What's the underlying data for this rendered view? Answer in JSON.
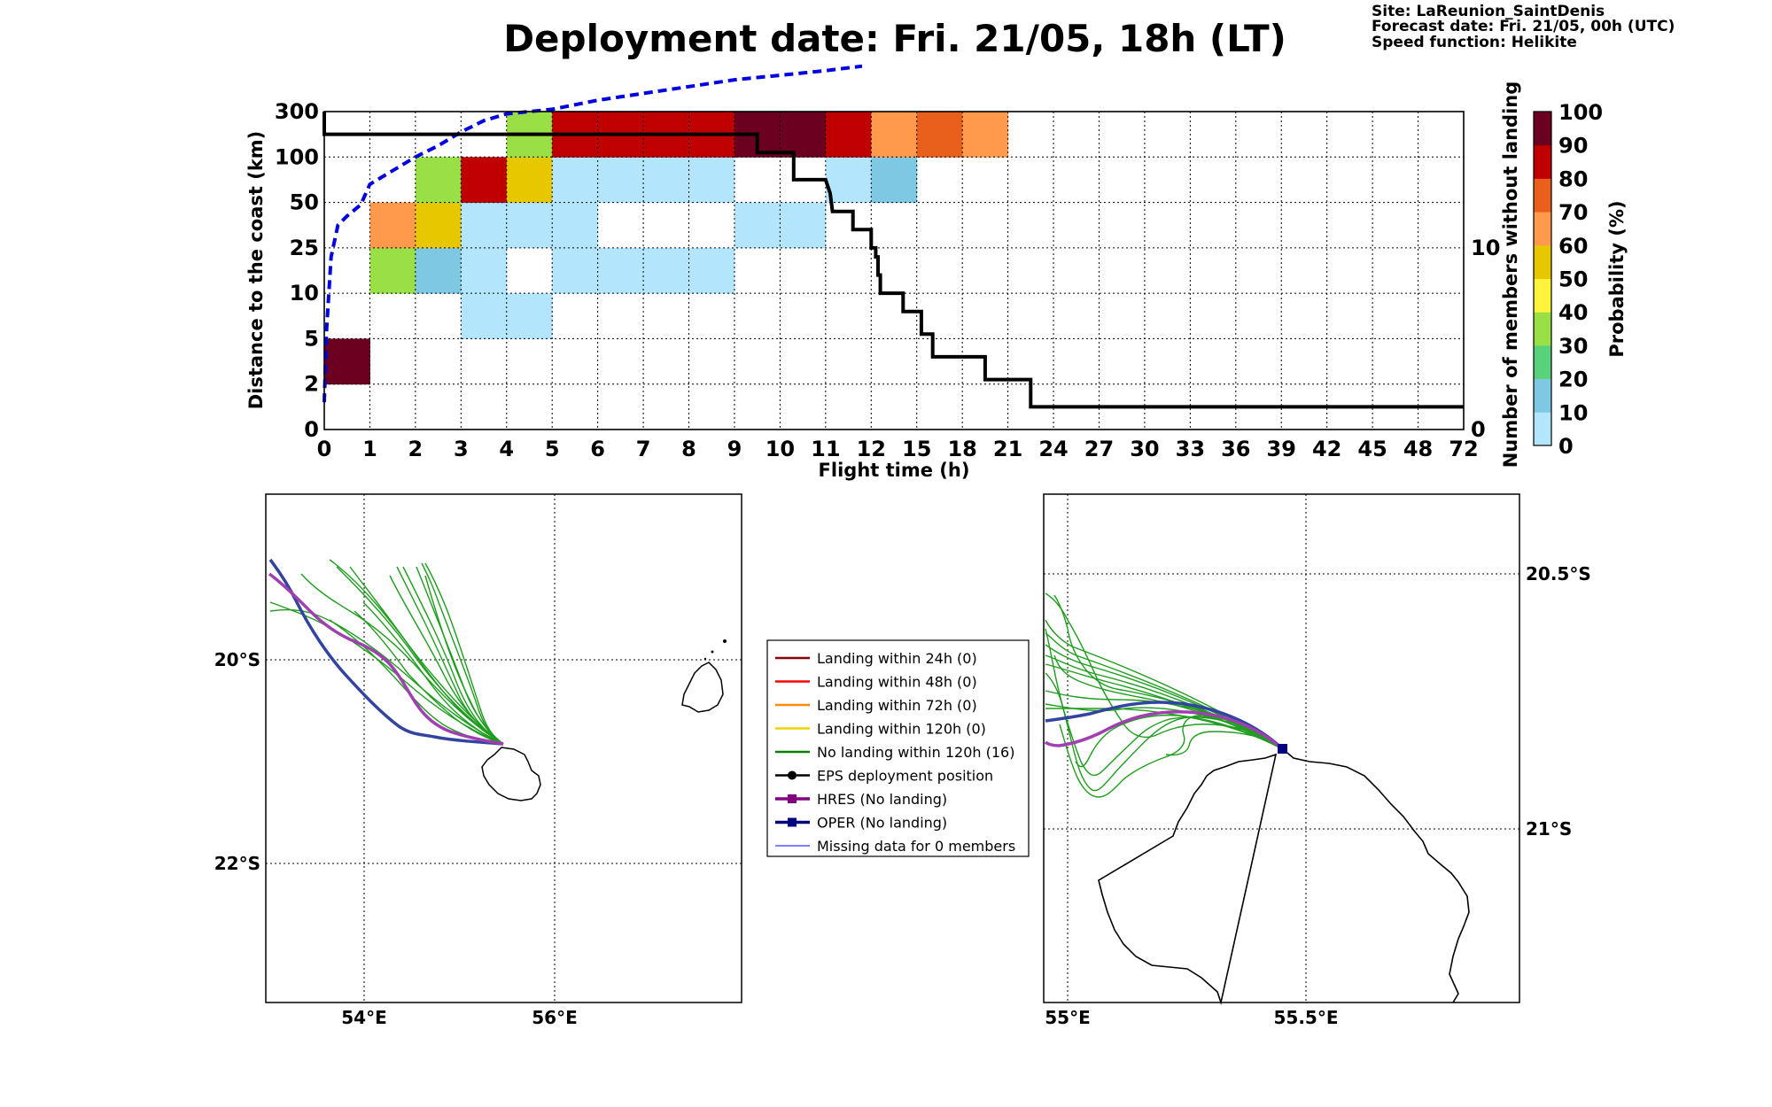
{
  "title": "Deployment date: Fri. 21/05, 18h (LT)",
  "info": {
    "site": "Site: LaReunion_SaintDenis",
    "forecast": "Forecast date: Fri. 21/05, 00h (UTC)",
    "speed": "Speed function: Helikite"
  },
  "chart_data": [
    {
      "type": "heatmap",
      "xlabel": "Flight time (h)",
      "ylabel": "Distance to the coast (km)",
      "y2label": "Number of members without landing",
      "x_ticks": [
        "0",
        "1",
        "2",
        "3",
        "4",
        "5",
        "6",
        "7",
        "8",
        "9",
        "10",
        "11",
        "12",
        "15",
        "18",
        "21",
        "24",
        "27",
        "30",
        "33",
        "36",
        "39",
        "42",
        "45",
        "48",
        "72"
      ],
      "y_ticks": [
        "0",
        "2",
        "5",
        "10",
        "25",
        "50",
        "100",
        "300"
      ],
      "y2_ticks": [
        "0",
        "10"
      ],
      "y2lim": [
        0,
        17.5
      ],
      "colorbar": {
        "label": "Probability (%)",
        "ticks": [
          "0",
          "10",
          "20",
          "30",
          "40",
          "50",
          "60",
          "70",
          "80",
          "90",
          "100"
        ],
        "colors": [
          "#b3e5fc",
          "#7ec8e3",
          "#5ad27a",
          "#98e045",
          "#fff33b",
          "#e6c700",
          "#ff9a4d",
          "#e8601c",
          "#c00000",
          "#6b0020"
        ]
      },
      "cells": [
        {
          "col": 0,
          "row": 1,
          "p": 100
        },
        {
          "col": 1,
          "row": 3,
          "p": 30
        },
        {
          "col": 1,
          "row": 4,
          "p": 60
        },
        {
          "col": 2,
          "row": 3,
          "p": 10
        },
        {
          "col": 2,
          "row": 4,
          "p": 50
        },
        {
          "col": 2,
          "row": 5,
          "p": 30
        },
        {
          "col": 3,
          "row": 2,
          "p": 0
        },
        {
          "col": 3,
          "row": 3,
          "p": 0
        },
        {
          "col": 3,
          "row": 4,
          "p": 0
        },
        {
          "col": 3,
          "row": 5,
          "p": 80
        },
        {
          "col": 4,
          "row": 2,
          "p": 0
        },
        {
          "col": 4,
          "row": 4,
          "p": 0
        },
        {
          "col": 4,
          "row": 5,
          "p": 50
        },
        {
          "col": 4,
          "row": 6,
          "p": 30
        },
        {
          "col": 5,
          "row": 3,
          "p": 0
        },
        {
          "col": 5,
          "row": 4,
          "p": 0
        },
        {
          "col": 5,
          "row": 5,
          "p": 0
        },
        {
          "col": 5,
          "row": 6,
          "p": 80
        },
        {
          "col": 6,
          "row": 3,
          "p": 0
        },
        {
          "col": 6,
          "row": 5,
          "p": 0
        },
        {
          "col": 6,
          "row": 6,
          "p": 80
        },
        {
          "col": 7,
          "row": 3,
          "p": 0
        },
        {
          "col": 7,
          "row": 5,
          "p": 0
        },
        {
          "col": 7,
          "row": 6,
          "p": 80
        },
        {
          "col": 8,
          "row": 3,
          "p": 0
        },
        {
          "col": 8,
          "row": 5,
          "p": 0
        },
        {
          "col": 8,
          "row": 6,
          "p": 80
        },
        {
          "col": 9,
          "row": 4,
          "p": 0
        },
        {
          "col": 9,
          "row": 6,
          "p": 90
        },
        {
          "col": 10,
          "row": 4,
          "p": 0
        },
        {
          "col": 10,
          "row": 6,
          "p": 90
        },
        {
          "col": 11,
          "row": 5,
          "p": 0
        },
        {
          "col": 11,
          "row": 6,
          "p": 80
        },
        {
          "col": 12,
          "row": 5,
          "p": 10
        },
        {
          "col": 12,
          "row": 6,
          "p": 60
        },
        {
          "col": 13,
          "row": 6,
          "p": 70
        },
        {
          "col": 14,
          "row": 6,
          "p": 60
        }
      ],
      "members_without_landing": [
        [
          0,
          17.5
        ],
        [
          0,
          16.25
        ],
        [
          9.5,
          16.25
        ],
        [
          9.5,
          15.25
        ],
        [
          10.3,
          15.25
        ],
        [
          10.3,
          13.75
        ],
        [
          11.0,
          13.75
        ],
        [
          11.1,
          13.0
        ],
        [
          11.15,
          12.0
        ],
        [
          11.6,
          12.0
        ],
        [
          11.6,
          11.0
        ],
        [
          12.0,
          11.0
        ],
        [
          12.0,
          10.0
        ],
        [
          12.1,
          10.0
        ],
        [
          12.1,
          9.5
        ],
        [
          12.15,
          9.5
        ],
        [
          12.15,
          8.5
        ],
        [
          12.2,
          8.5
        ],
        [
          12.2,
          7.5
        ],
        [
          12.7,
          7.5
        ],
        [
          12.7,
          6.5
        ],
        [
          13.1,
          6.5
        ],
        [
          13.1,
          5.25
        ],
        [
          13.35,
          5.25
        ],
        [
          13.35,
          4.0
        ],
        [
          14.5,
          4.0
        ],
        [
          14.5,
          2.75
        ],
        [
          15.5,
          2.75
        ],
        [
          15.5,
          1.25
        ],
        [
          25,
          1.25
        ]
      ],
      "mean_distance_curve": [
        [
          0,
          0.6
        ],
        [
          0.05,
          2.2
        ],
        [
          0.15,
          3.8
        ],
        [
          0.3,
          4.5
        ],
        [
          0.5,
          4.7
        ],
        [
          0.8,
          4.95
        ],
        [
          1.0,
          5.4
        ],
        [
          1.5,
          5.7
        ],
        [
          2.0,
          6.0
        ],
        [
          2.5,
          6.25
        ],
        [
          3.0,
          6.55
        ],
        [
          3.5,
          6.8
        ],
        [
          4.0,
          6.95
        ],
        [
          5.0,
          7.05
        ],
        [
          6.0,
          7.25
        ],
        [
          7.0,
          7.4
        ],
        [
          8.0,
          7.55
        ],
        [
          9.0,
          7.7
        ],
        [
          10.0,
          7.8
        ],
        [
          11.0,
          7.9
        ],
        [
          11.8,
          8.0
        ]
      ]
    },
    {
      "type": "map",
      "lon_ticks": [
        "54°E",
        "56°E"
      ],
      "lat_ticks": [
        "20°S",
        "22°S"
      ]
    },
    {
      "type": "map",
      "lon_ticks": [
        "55°E",
        "55.5°E"
      ],
      "lat_ticks": [
        "20.5°S",
        "21°S"
      ]
    }
  ],
  "legend": [
    {
      "label": "Landing within 24h (0)",
      "color": "#8b0000",
      "marker": "line"
    },
    {
      "label": "Landing within 48h (0)",
      "color": "#ff0000",
      "marker": "line"
    },
    {
      "label": "Landing within 72h (0)",
      "color": "#ff8c00",
      "marker": "line"
    },
    {
      "label": "Landing within 120h (0)",
      "color": "#f2d000",
      "marker": "line"
    },
    {
      "label": "No landing within 120h (16)",
      "color": "#008000",
      "marker": "line"
    },
    {
      "label": "EPS deployment position",
      "color": "#000000",
      "marker": "dot"
    },
    {
      "label": "HRES (No landing)",
      "color": "#800080",
      "marker": "square"
    },
    {
      "label": "OPER (No landing)",
      "color": "#000080",
      "marker": "square"
    },
    {
      "label": "Missing data for 0 members",
      "color": "#3333ff",
      "marker": "thin"
    }
  ]
}
